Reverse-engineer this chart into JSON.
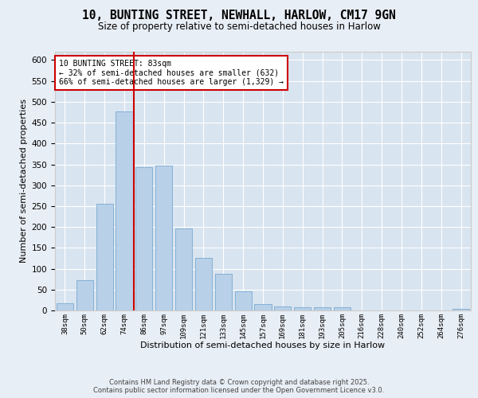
{
  "title_line1": "10, BUNTING STREET, NEWHALL, HARLOW, CM17 9GN",
  "title_line2": "Size of property relative to semi-detached houses in Harlow",
  "xlabel": "Distribution of semi-detached houses by size in Harlow",
  "ylabel": "Number of semi-detached properties",
  "categories": [
    "38sqm",
    "50sqm",
    "62sqm",
    "74sqm",
    "86sqm",
    "97sqm",
    "109sqm",
    "121sqm",
    "133sqm",
    "145sqm",
    "157sqm",
    "169sqm",
    "181sqm",
    "193sqm",
    "205sqm",
    "216sqm",
    "228sqm",
    "240sqm",
    "252sqm",
    "264sqm",
    "276sqm"
  ],
  "values": [
    17,
    72,
    255,
    477,
    344,
    347,
    197,
    126,
    88,
    46,
    16,
    10,
    7,
    8,
    8,
    0,
    0,
    0,
    0,
    0,
    4
  ],
  "bar_color": "#b8d0e8",
  "bar_edge_color": "#7aaad0",
  "vline_color": "#cc0000",
  "annotation_title": "10 BUNTING STREET: 83sqm",
  "annotation_line2": "← 32% of semi-detached houses are smaller (632)",
  "annotation_line3": "66% of semi-detached houses are larger (1,329) →",
  "annotation_box_color": "#cc0000",
  "ylim": [
    0,
    620
  ],
  "yticks": [
    0,
    50,
    100,
    150,
    200,
    250,
    300,
    350,
    400,
    450,
    500,
    550,
    600
  ],
  "footer_line1": "Contains HM Land Registry data © Crown copyright and database right 2025.",
  "footer_line2": "Contains public sector information licensed under the Open Government Licence v3.0.",
  "bg_color": "#e8eef5",
  "plot_bg_color": "#d8e4f0"
}
